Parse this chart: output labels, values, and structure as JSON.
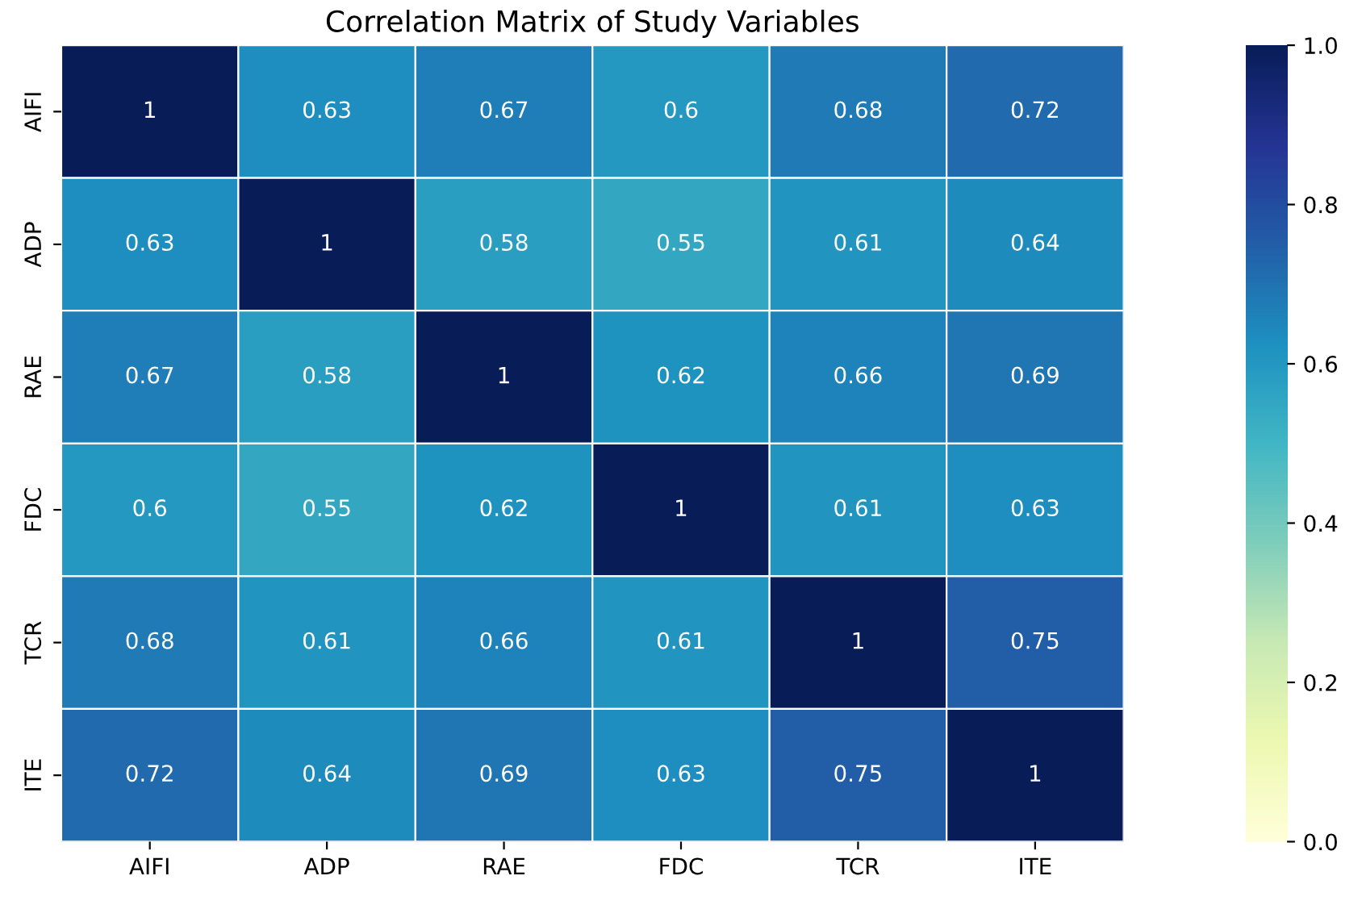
{
  "chart_data": {
    "type": "heatmap",
    "title": "Correlation Matrix of Study Variables",
    "categories": [
      "AIFI",
      "ADP",
      "RAE",
      "FDC",
      "TCR",
      "ITE"
    ],
    "y_categories": [
      "AIFI",
      "ADP",
      "RAE",
      "FDC",
      "TCR",
      "ITE"
    ],
    "cells": [
      [
        1,
        0.63,
        0.67,
        0.6,
        0.68,
        0.72
      ],
      [
        0.63,
        1,
        0.58,
        0.55,
        0.61,
        0.64
      ],
      [
        0.67,
        0.58,
        1,
        0.62,
        0.66,
        0.69
      ],
      [
        0.6,
        0.55,
        0.62,
        1,
        0.61,
        0.63
      ],
      [
        0.68,
        0.61,
        0.66,
        0.61,
        1,
        0.75
      ],
      [
        0.72,
        0.64,
        0.69,
        0.63,
        0.75,
        1
      ]
    ],
    "data_labels": true,
    "clim": [
      0.0,
      1.0
    ],
    "cticks": [
      {
        "value": 0.0,
        "label": "0.0"
      },
      {
        "value": 0.2,
        "label": "0.2"
      },
      {
        "value": 0.4,
        "label": "0.4"
      },
      {
        "value": 0.6,
        "label": "0.6"
      },
      {
        "value": 0.8,
        "label": "0.8"
      },
      {
        "value": 1.0,
        "label": "1.0"
      }
    ]
  }
}
